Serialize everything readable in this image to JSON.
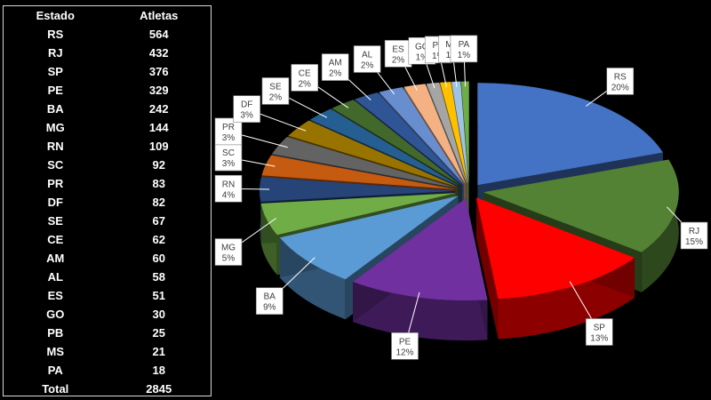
{
  "table": {
    "headers": {
      "state": "Estado",
      "athletes": "Atletas"
    },
    "rows": [
      {
        "state": "RS",
        "athletes": "564"
      },
      {
        "state": "RJ",
        "athletes": "432"
      },
      {
        "state": "SP",
        "athletes": "376"
      },
      {
        "state": "PE",
        "athletes": "329"
      },
      {
        "state": "BA",
        "athletes": "242"
      },
      {
        "state": "MG",
        "athletes": "144"
      },
      {
        "state": "RN",
        "athletes": "109"
      },
      {
        "state": "SC",
        "athletes": "92"
      },
      {
        "state": "PR",
        "athletes": "83"
      },
      {
        "state": "DF",
        "athletes": "82"
      },
      {
        "state": "SE",
        "athletes": "67"
      },
      {
        "state": "CE",
        "athletes": "62"
      },
      {
        "state": "AM",
        "athletes": "60"
      },
      {
        "state": "AL",
        "athletes": "58"
      },
      {
        "state": "ES",
        "athletes": "51"
      },
      {
        "state": "GO",
        "athletes": "30"
      },
      {
        "state": "PB",
        "athletes": "25"
      },
      {
        "state": "MS",
        "athletes": "21"
      },
      {
        "state": "PA",
        "athletes": "18"
      }
    ],
    "total": {
      "state": "Total",
      "athletes": "2845"
    }
  },
  "chart_data": {
    "type": "pie",
    "style": "3d-exploded",
    "categories": [
      "RS",
      "RJ",
      "SP",
      "PE",
      "BA",
      "MG",
      "RN",
      "SC",
      "PR",
      "DF",
      "SE",
      "CE",
      "AM",
      "AL",
      "ES",
      "GO",
      "PB",
      "MS",
      "PA"
    ],
    "values": [
      564,
      432,
      376,
      329,
      242,
      144,
      109,
      92,
      83,
      82,
      67,
      62,
      60,
      58,
      51,
      30,
      25,
      21,
      18
    ],
    "percent_labels": [
      "20%",
      "15%",
      "13%",
      "12%",
      "9%",
      "5%",
      "4%",
      "3%",
      "3%",
      "3%",
      "2%",
      "2%",
      "2%",
      "2%",
      "2%",
      "1%",
      "1%",
      "1%",
      "1%"
    ],
    "colors": [
      "#4472c4",
      "#548235",
      "#ff0000",
      "#7030a0",
      "#5b9bd5",
      "#70ad47",
      "#264478",
      "#c55a11",
      "#636363",
      "#997300",
      "#255e91",
      "#43682b",
      "#2f5597",
      "#698ed0",
      "#f4b183",
      "#a5a5a5",
      "#ffc000",
      "#9dc3e6",
      "#70ad47"
    ]
  }
}
